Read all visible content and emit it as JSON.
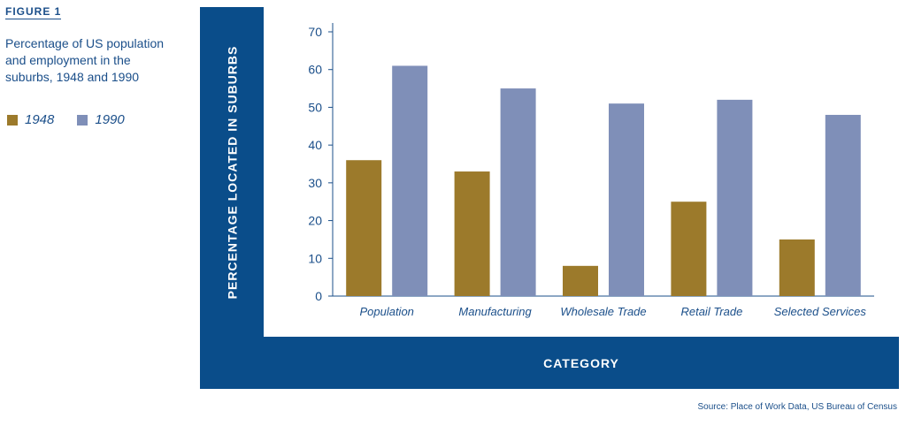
{
  "figure_label": "FIGURE 1",
  "caption": "Percentage of US population and employment in the suburbs, 1948 and 1990",
  "source": "Source: Place of Work Data, US Bureau of Census",
  "colors": {
    "series_1948": "#9c7a2b",
    "series_1990": "#7f8fb8",
    "frame": "#0a4d8a",
    "text": "#1b4f8a"
  },
  "chart_data": {
    "type": "bar",
    "title": "",
    "xlabel": "CATEGORY",
    "ylabel": "PERCENTAGE LOCATED IN SUBURBS",
    "ylim": [
      0,
      70
    ],
    "yticks": [
      0,
      10,
      20,
      30,
      40,
      50,
      60,
      70
    ],
    "categories": [
      "Population",
      "Manufacturing",
      "Wholesale Trade",
      "Retail Trade",
      "Selected Services"
    ],
    "series": [
      {
        "name": "1948",
        "values": [
          36,
          33,
          8,
          25,
          15
        ]
      },
      {
        "name": "1990",
        "values": [
          61,
          55,
          51,
          52,
          48
        ]
      }
    ],
    "grid": false,
    "legend": "left"
  }
}
